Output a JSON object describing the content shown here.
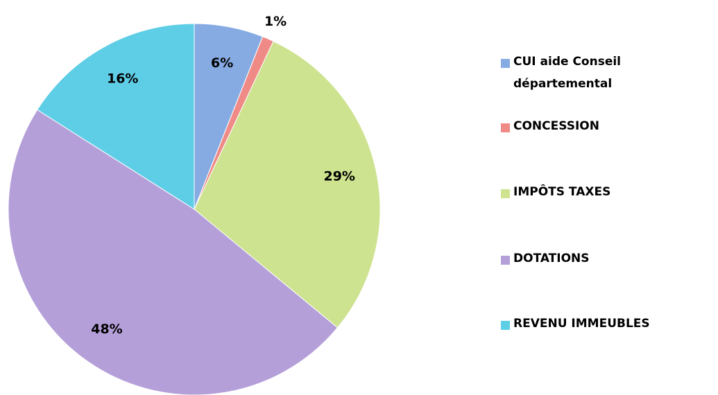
{
  "chart_data": {
    "type": "pie",
    "categories": [
      "CUI aide Conseil départemental",
      "CONCESSION",
      "IMPÔTS TAXES",
      "DOTATIONS",
      "REVENU IMMEUBLES"
    ],
    "values": [
      6,
      1,
      29,
      48,
      16
    ],
    "value_labels": [
      "6%",
      "1%",
      "29%",
      "48%",
      "16%"
    ],
    "colors": [
      "#86abe3",
      "#ef8a87",
      "#cde38f",
      "#b49fd9",
      "#5ecde6"
    ],
    "legend": "right"
  }
}
